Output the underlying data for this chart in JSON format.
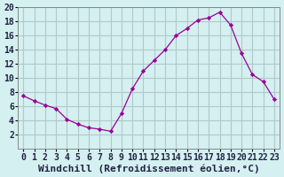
{
  "hours": [
    0,
    1,
    2,
    3,
    4,
    5,
    6,
    7,
    8,
    9,
    10,
    11,
    12,
    13,
    14,
    15,
    16,
    17,
    18,
    19,
    20,
    21,
    22,
    23
  ],
  "windchill": [
    7.5,
    6.8,
    6.2,
    5.7,
    4.2,
    3.5,
    3.0,
    2.8,
    2.5,
    5.0,
    8.5,
    11.0,
    12.5,
    14.0,
    16.0,
    17.0,
    18.2,
    18.5,
    19.3,
    17.5,
    13.5,
    10.5,
    9.5,
    7.0
  ],
  "line_color": "#990099",
  "marker_color": "#990099",
  "bg_color": "#d4f0f0",
  "grid_color": "#b0c8c8",
  "xlabel": "Windchill (Refroidissement éolien,°C)",
  "xlabel_fontsize": 8,
  "tick_fontsize": 7,
  "ylim": [
    0,
    20
  ],
  "xlim": [
    -0.5,
    23.5
  ],
  "yticks": [
    2,
    4,
    6,
    8,
    10,
    12,
    14,
    16,
    18,
    20
  ],
  "xticks": [
    0,
    1,
    2,
    3,
    4,
    5,
    6,
    7,
    8,
    9,
    10,
    11,
    12,
    13,
    14,
    15,
    16,
    17,
    18,
    19,
    20,
    21,
    22,
    23
  ]
}
